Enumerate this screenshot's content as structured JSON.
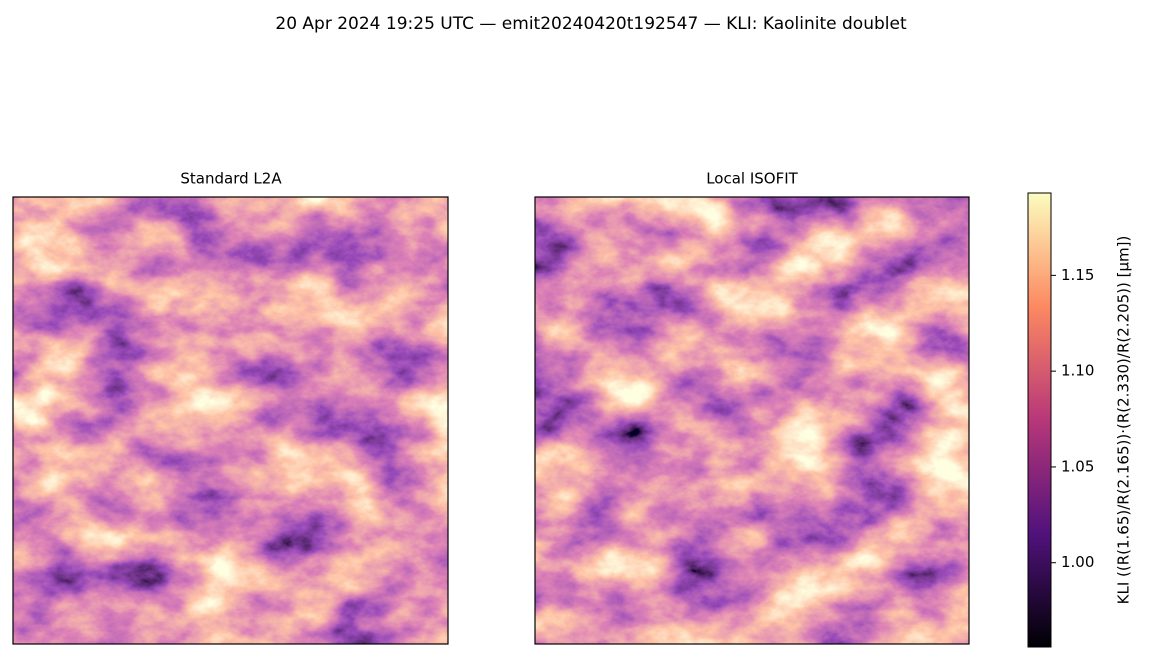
{
  "chart_data": {
    "type": "heatmap",
    "title": "20 Apr 2024 19:25 UTC — emit20240420t192547 — KLI: Kaolinite doublet",
    "panels": [
      {
        "title": "Standard L2A"
      },
      {
        "title": "Local ISOFIT"
      }
    ],
    "colorbar": {
      "label": "KLI  ((R(1.65)/R(2.165))·(R(2.330)/R(2.205))  [µm])",
      "colormap": "magma",
      "lim": [
        0.956,
        1.193
      ],
      "ticks": [
        {
          "value": 1,
          "label": "1.00"
        },
        1.05,
        {
          "value": 1.1,
          "label": "1.10"
        },
        1.15
      ]
    }
  }
}
